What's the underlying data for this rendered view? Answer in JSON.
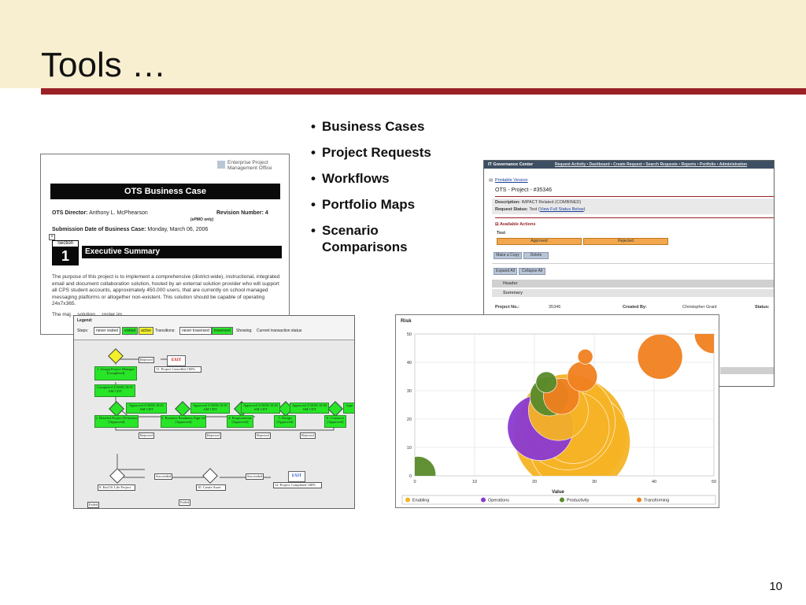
{
  "slide": {
    "title": "Tools …",
    "bullets": [
      "Business Cases",
      "Project Requests",
      "Workflows",
      "Portfolio Maps",
      "Scenario Comparisons"
    ],
    "slide_number": "10",
    "colors": {
      "title_band": "#f7efcf",
      "rule": "#9b2127"
    }
  },
  "business_case": {
    "logo_text": "Enterprise Project Management Office",
    "banner": "OTS Business Case",
    "director_label": "OTS Director:",
    "director_value": "Anthony L. McPhearson",
    "revision_label": "Revision Number:",
    "revision_value": "4",
    "epmo_note": "(ePMO only)",
    "date_label": "Submission Date of Business Case:",
    "date_value": "Monday, March 06, 2006",
    "section_label": "Section",
    "section_number": "1",
    "section_title": "Executive Summary",
    "paragraph": "The purpose of this project is to implement a comprehensive (district-wide), instructional, integrated email and document collaboration solution, hosted by an external solution provider who will support all CPS student accounts, approximately 450,000 users, that are currently on school managed messaging platforms or altogether non-existent. This solution should be capable of operating 24x7x365.",
    "paragraph2": "The maj… solution… roster im…"
  },
  "it_governance": {
    "app_title": "IT Governance Center",
    "top_links": "Request Activity • Dashboard • Create Request • Search Requests • Reports • Portfolio • Administration",
    "printable": "Printable Version",
    "heading": "OTS - Project - #35346",
    "description_label": "Description:",
    "description_value": "IMPACT Related (COMBINED)",
    "status_label": "Request Status:",
    "status_value": "Test",
    "status_link": "View Full Status Below",
    "actions_title": "Available Actions",
    "test_label": "Test",
    "approved_btn": "Approved",
    "rejected_btn": "Rejected",
    "make_copy_btn": "Make a Copy",
    "delete_btn": "Delete",
    "expand_btn": "Expand All",
    "collapse_btn": "Collapse All",
    "header_section": "Header",
    "summary_section": "Summary",
    "project_no_label": "Project No.:",
    "project_no_value": "35346",
    "created_by_label": "Created By:",
    "created_by_value": "Christopher Grant",
    "status2_label": "Status:"
  },
  "workflow": {
    "legend_title": "Legend:",
    "steps_label": "Steps:",
    "never_visited": "never visited",
    "visited": "visited",
    "active": "active",
    "transitions_label": "Transitions:",
    "never_traversed": "never traversed",
    "traversed": "traversed",
    "showing_label": "Showing:",
    "showing_value": "Current transaction status",
    "exit1": "EXIT",
    "exit2": "EXIT",
    "rejected": "Rejected",
    "project_cancelled": "11. Project Cancelled   100%",
    "assign_manager": "1. Assign Project Manager [Completed]",
    "completed": "Completed 3/30/06 10:01 AM CDT",
    "approved_1": "Approved 3/30/06 10:01 AM CDT",
    "approved_2": "Approved 3/30/06 10:01 AM CDT",
    "approved_3": "Approved 3/30/06 10:02 AM CDT",
    "approved_4": "Approved 3/30/06 10:04 AM CDT",
    "approved_5": "Appr",
    "step_2": "2. Detailed Project Definition [Approved]",
    "step_3": "3. Business Readiness Sign-off [Approved]",
    "step_4": "4. Requirements [Approved]",
    "step_5": "5. Design [Approved]",
    "step_6": "6. Construct [Approved]",
    "step_9": "9. End Of Life Project",
    "step_10": "10. Create Asset",
    "succeeded": "Succeeded",
    "project_completed": "12. Project Completed   100%",
    "failed": "Failed"
  },
  "chart_data": {
    "type": "scatter",
    "ylabel": "Risk",
    "xlabel": "Value",
    "xlim": [
      0,
      50
    ],
    "ylim": [
      0,
      50
    ],
    "xticks": [
      0,
      10,
      20,
      30,
      40,
      50
    ],
    "yticks": [
      0,
      10,
      20,
      30,
      40,
      50
    ],
    "grid": true,
    "legend_position": "bottom",
    "series": [
      {
        "name": "Enabling",
        "color": "#f5b325",
        "points": [
          [
            25.5,
            19
          ],
          [
            26,
            15
          ],
          [
            27.5,
            12
          ],
          [
            24,
            23
          ],
          [
            26.5,
            17
          ]
        ],
        "sizes": [
          16,
          19,
          17,
          10,
          12
        ]
      },
      {
        "name": "Operations",
        "color": "#8a3ad1",
        "points": [
          [
            21,
            17
          ]
        ],
        "sizes": [
          11
        ]
      },
      {
        "name": "Productivity",
        "color": "#5a8a2a",
        "points": [
          [
            0.5,
            0.5
          ],
          [
            22.5,
            28
          ],
          [
            22,
            33
          ]
        ],
        "sizes": [
          6,
          6.5,
          3.5
        ]
      },
      {
        "name": "Transforming",
        "color": "#f08020",
        "points": [
          [
            24.5,
            28
          ],
          [
            28,
            35
          ],
          [
            28.5,
            42
          ],
          [
            41,
            42
          ],
          [
            50,
            50
          ]
        ],
        "sizes": [
          6,
          5,
          2.5,
          7.5,
          6.5
        ]
      }
    ]
  }
}
